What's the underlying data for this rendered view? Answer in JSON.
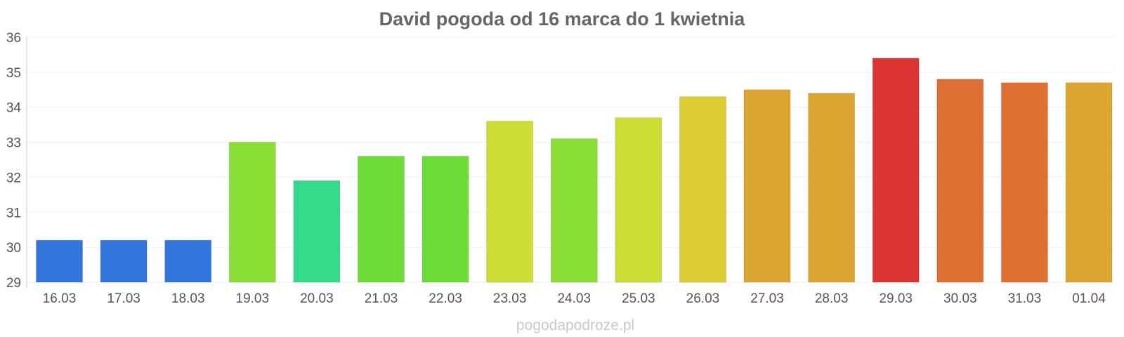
{
  "chart_data": {
    "type": "bar",
    "title": "David pogoda od 16 marca do 1 kwietnia",
    "categories": [
      "16.03",
      "17.03",
      "18.03",
      "19.03",
      "20.03",
      "21.03",
      "22.03",
      "23.03",
      "24.03",
      "25.03",
      "26.03",
      "27.03",
      "28.03",
      "29.03",
      "30.03",
      "31.03",
      "01.04"
    ],
    "values": [
      30.2,
      30.2,
      30.2,
      33.0,
      31.9,
      32.6,
      32.6,
      33.6,
      33.1,
      33.7,
      34.3,
      34.5,
      34.4,
      35.4,
      34.8,
      34.7,
      34.7
    ],
    "colors": [
      "#3275dc",
      "#3275dc",
      "#3275dc",
      "#8bde36",
      "#34db8b",
      "#6bdd36",
      "#6bdd36",
      "#ccdd33",
      "#8bde36",
      "#ccdd33",
      "#dccc33",
      "#dca633",
      "#dca633",
      "#dc3533",
      "#dd6f33",
      "#dd6f33",
      "#dca633"
    ],
    "ylim": [
      29,
      36
    ],
    "yticks": [
      "29",
      "30",
      "31",
      "32",
      "33",
      "34",
      "35",
      "36"
    ],
    "grid": true
  },
  "watermark": "pogodapodroze.pl"
}
